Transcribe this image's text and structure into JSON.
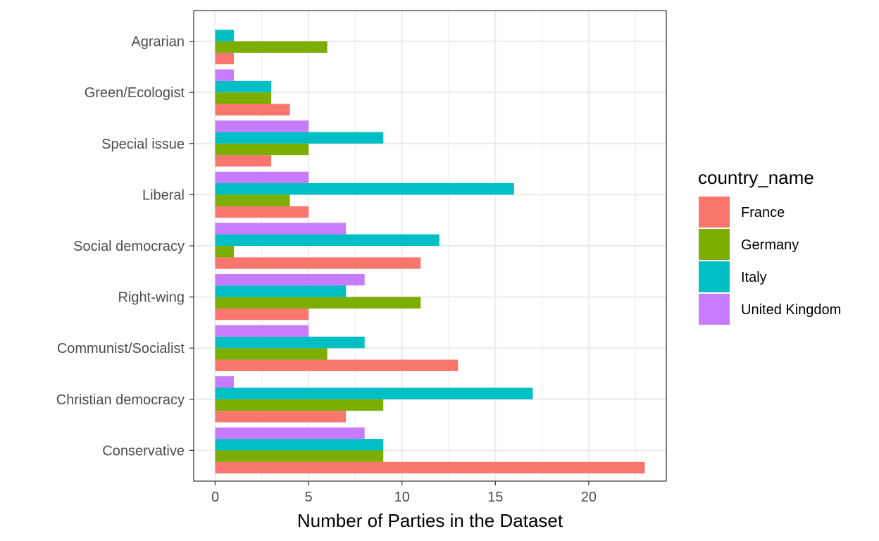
{
  "chart_data": {
    "type": "bar",
    "orientation": "horizontal",
    "categories": [
      "Conservative",
      "Christian democracy",
      "Communist/Socialist",
      "Right-wing",
      "Social democracy",
      "Liberal",
      "Special issue",
      "Green/Ecologist",
      "Agrarian"
    ],
    "series": [
      {
        "name": "France",
        "color": "#F8766D",
        "values": [
          23,
          7,
          13,
          5,
          11,
          5,
          3,
          4,
          1
        ]
      },
      {
        "name": "Germany",
        "color": "#7CAE00",
        "values": [
          9,
          9,
          6,
          11,
          1,
          4,
          5,
          3,
          6
        ]
      },
      {
        "name": "Italy",
        "color": "#00BFC4",
        "values": [
          9,
          17,
          8,
          7,
          12,
          16,
          9,
          3,
          1
        ]
      },
      {
        "name": "United Kingdom",
        "color": "#C77CFF",
        "values": [
          8,
          1,
          5,
          8,
          7,
          5,
          5,
          1,
          0
        ]
      }
    ],
    "xlabel": "Number of Parties in the Dataset",
    "ylabel": "",
    "xlim": [
      -1.15,
      24.15
    ],
    "xticks": [
      0,
      5,
      10,
      15,
      20
    ],
    "xtick_labels": [
      "0",
      "5",
      "10",
      "15",
      "20"
    ],
    "grid": true,
    "legend": {
      "title": "country_name",
      "placement": "right",
      "entries": [
        "France",
        "Germany",
        "Italy",
        "United Kingdom"
      ]
    }
  }
}
